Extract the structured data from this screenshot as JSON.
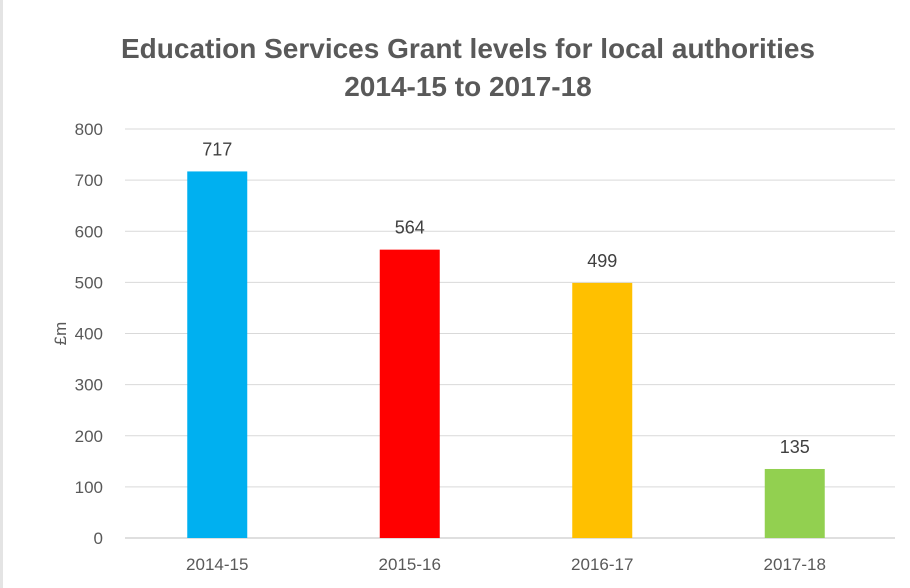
{
  "chart_data": {
    "type": "bar",
    "title": "Education Services Grant levels for local authorities",
    "subtitle": "2014-15 to 2017-18",
    "xlabel": "",
    "ylabel": "£m",
    "ylim": [
      0,
      800
    ],
    "yticks": [
      0,
      100,
      200,
      300,
      400,
      500,
      600,
      700,
      800
    ],
    "grid": true,
    "legend": "none",
    "categories": [
      "2014-15",
      "2015-16",
      "2016-17",
      "2017-18"
    ],
    "values": [
      717,
      564,
      499,
      135
    ],
    "data_labels": [
      "717",
      "564",
      "499",
      "135"
    ],
    "colors": [
      "#00b0f0",
      "#ff0000",
      "#ffc000",
      "#92d050"
    ]
  }
}
